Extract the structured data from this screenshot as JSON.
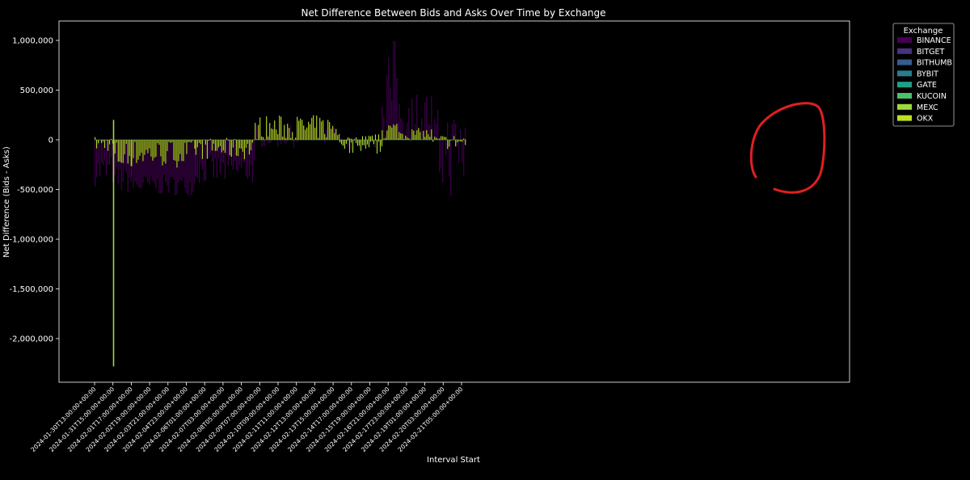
{
  "chart_data": {
    "type": "bar",
    "stacked": true,
    "title": "Net Difference Between Bids and Asks Over Time by Exchange",
    "xlabel": "Interval Start",
    "ylabel": "Net Difference (Bids - Asks)",
    "ylim": [
      -2300000,
      1100000
    ],
    "yticks": [
      {
        "value": 1000000,
        "label": "1,000,000"
      },
      {
        "value": 500000,
        "label": "500,000"
      },
      {
        "value": 0,
        "label": "0"
      },
      {
        "value": -500000,
        "label": "-500,000"
      },
      {
        "value": -1000000,
        "label": "-1,000,000"
      },
      {
        "value": -1500000,
        "label": "-1,500,000"
      },
      {
        "value": -2000000,
        "label": "-2,000,000"
      }
    ],
    "xticks": [
      "2024-01-30T13:00:00+00:00",
      "2024-01-31T15:00:00+00:00",
      "2024-02-01T17:00:00+00:00",
      "2024-02-02T19:00:00+00:00",
      "2024-02-03T21:00:00+00:00",
      "2024-02-04T23:00:00+00:00",
      "2024-02-06T01:00:00+00:00",
      "2024-02-07T03:00:00+00:00",
      "2024-02-08T05:00:00+00:00",
      "2024-02-09T07:00:00+00:00",
      "2024-02-10T09:00:00+00:00",
      "2024-02-11T11:00:00+00:00",
      "2024-02-12T13:00:00+00:00",
      "2024-02-13T15:00:00+00:00",
      "2024-02-14T17:00:00+00:00",
      "2024-02-15T19:00:00+00:00",
      "2024-02-16T21:00:00+00:00",
      "2024-02-17T23:00:00+00:00",
      "2024-02-19T01:00:00+00:00",
      "2024-02-20T03:00:00+00:00",
      "2024-02-21T05:00:00+00:00"
    ],
    "legend": {
      "title": "Exchange",
      "placement": "outside-top-right",
      "entries": [
        {
          "name": "BINANCE",
          "color": "#440154"
        },
        {
          "name": "BITGET",
          "color": "#46327e"
        },
        {
          "name": "BITHUMB",
          "color": "#365c8d"
        },
        {
          "name": "BYBIT",
          "color": "#277f8e"
        },
        {
          "name": "GATE",
          "color": "#1fa187"
        },
        {
          "name": "KUCOIN",
          "color": "#4ac16d"
        },
        {
          "name": "MEXC",
          "color": "#a0da39"
        },
        {
          "name": "OKX",
          "color": "#bddf26"
        }
      ]
    },
    "grid": false,
    "annotation": {
      "type": "hand-drawn circle",
      "color": "#e02020",
      "target": "2024-02-20 to 2024-02-21 region"
    },
    "series_overview": {
      "x_period_hours": 50,
      "segments": [
        {
          "x_from": "2024-01-30T13:00:00+00:00",
          "x_to": "2024-01-31T15:00:00+00:00",
          "BINANCE": [
            -470000,
            -150000
          ],
          "OKX": [
            -120000,
            40000
          ]
        },
        {
          "x_from": "2024-01-31T15:00:00+00:00",
          "x_to": "2024-02-01T17:00:00+00:00",
          "BINANCE": [
            -550000,
            -250000
          ],
          "OKX": [
            -330000,
            0
          ],
          "spike": {
            "x": "2024-01-31T15:00:00+00:00",
            "MEXC": [
              -2280000,
              200000
            ]
          }
        },
        {
          "x_from": "2024-02-01T17:00:00+00:00",
          "x_to": "2024-02-05T12:00:00+00:00",
          "BINANCE": [
            -560000,
            -350000
          ],
          "OKX": [
            -280000,
            0
          ]
        },
        {
          "x_from": "2024-02-05T12:00:00+00:00",
          "x_to": "2024-02-09T00:00:00+00:00",
          "BINANCE": [
            -450000,
            -150000
          ],
          "OKX": [
            -200000,
            20000
          ]
        },
        {
          "x_from": "2024-02-09T00:00:00+00:00",
          "x_to": "2024-02-14T00:00:00+00:00",
          "BINANCE": [
            -80000,
            150000
          ],
          "OKX": [
            0,
            250000
          ]
        },
        {
          "x_from": "2024-02-14T00:00:00+00:00",
          "x_to": "2024-02-16T12:00:00+00:00",
          "BINANCE": [
            -100000,
            60000
          ],
          "OKX": [
            -60000,
            60000
          ],
          "MEXC": [
            -150000,
            0
          ]
        },
        {
          "x_from": "2024-02-16T12:00:00+00:00",
          "x_to": "2024-02-17T12:00:00+00:00",
          "BINANCE": [
            0,
            1030000
          ],
          "OKX": [
            0,
            200000
          ]
        },
        {
          "x_from": "2024-02-17T12:00:00+00:00",
          "x_to": "2024-02-19T12:00:00+00:00",
          "BINANCE": [
            0,
            500000
          ],
          "OKX": [
            0,
            120000
          ]
        },
        {
          "x_from": "2024-02-19T12:00:00+00:00",
          "x_to": "2024-02-21T12:00:00+00:00",
          "BINANCE": [
            -580000,
            330000
          ],
          "OKX": [
            -100000,
            60000
          ]
        }
      ]
    }
  }
}
